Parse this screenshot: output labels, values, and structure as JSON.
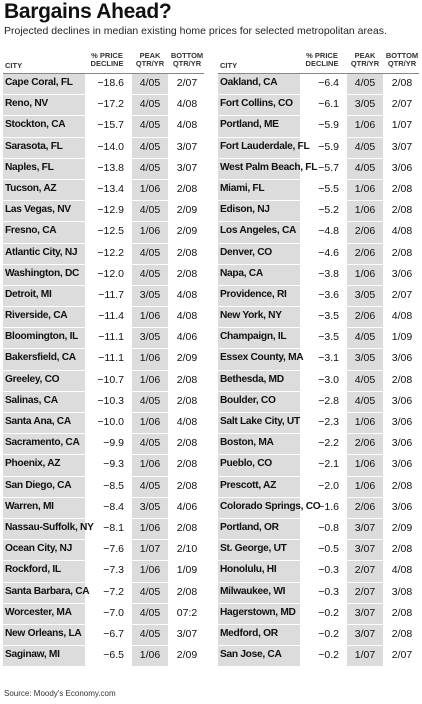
{
  "title": "Bargains Ahead?",
  "subtitle": "Projected declines in median existing home prices for selected metropolitan areas.",
  "headers": {
    "city": "CITY",
    "pct_l1": "% PRICE",
    "pct_l2": "DECLINE",
    "peak_l1": "PEAK",
    "peak_l2": "QTR/YR",
    "bottom_l1": "BOTTOM",
    "bottom_l2": "QTR/YR"
  },
  "left_rows": [
    {
      "city": "Cape Coral, FL",
      "decline": "−18.6",
      "peak": "4/05",
      "bottom": "2/07"
    },
    {
      "city": "Reno, NV",
      "decline": "−17.2",
      "peak": "4/05",
      "bottom": "4/08"
    },
    {
      "city": "Stockton, CA",
      "decline": "−15.7",
      "peak": "4/05",
      "bottom": "4/08"
    },
    {
      "city": "Sarasota, FL",
      "decline": "−14.0",
      "peak": "4/05",
      "bottom": "3/07"
    },
    {
      "city": "Naples, FL",
      "decline": "−13.8",
      "peak": "4/05",
      "bottom": "3/07"
    },
    {
      "city": "Tucson, AZ",
      "decline": "−13.4",
      "peak": "1/06",
      "bottom": "2/08"
    },
    {
      "city": "Las Vegas, NV",
      "decline": "−12.9",
      "peak": "4/05",
      "bottom": "2/09"
    },
    {
      "city": "Fresno, CA",
      "decline": "−12.5",
      "peak": "1/06",
      "bottom": "2/09"
    },
    {
      "city": "Atlantic City, NJ",
      "decline": "−12.2",
      "peak": "4/05",
      "bottom": "2/08"
    },
    {
      "city": "Washington, DC",
      "decline": "−12.0",
      "peak": "4/05",
      "bottom": "2/08"
    },
    {
      "city": "Detroit, MI",
      "decline": "−11.7",
      "peak": "3/05",
      "bottom": "4/08"
    },
    {
      "city": "Riverside, CA",
      "decline": "−11.4",
      "peak": "1/06",
      "bottom": "4/08"
    },
    {
      "city": "Bloomington, IL",
      "decline": "−11.1",
      "peak": "3/05",
      "bottom": "4/06"
    },
    {
      "city": "Bakersfield, CA",
      "decline": "−11.1",
      "peak": "1/06",
      "bottom": "2/09"
    },
    {
      "city": "Greeley, CO",
      "decline": "−10.7",
      "peak": "1/06",
      "bottom": "2/08"
    },
    {
      "city": "Salinas, CA",
      "decline": "−10.3",
      "peak": "4/05",
      "bottom": "2/08"
    },
    {
      "city": "Santa Ana, CA",
      "decline": "−10.0",
      "peak": "1/06",
      "bottom": "4/08"
    },
    {
      "city": "Sacramento, CA",
      "decline": "−9.9",
      "peak": "4/05",
      "bottom": "2/08"
    },
    {
      "city": "Phoenix, AZ",
      "decline": "−9.3",
      "peak": "1/06",
      "bottom": "2/08"
    },
    {
      "city": "San Diego, CA",
      "decline": "−8.5",
      "peak": "4/05",
      "bottom": "2/08"
    },
    {
      "city": "Warren, MI",
      "decline": "−8.4",
      "peak": "3/05",
      "bottom": "4/06"
    },
    {
      "city": "Nassau-Suffolk, NY",
      "decline": "−8.1",
      "peak": "1/06",
      "bottom": "2/08"
    },
    {
      "city": "Ocean City, NJ",
      "decline": "−7.6",
      "peak": "1/07",
      "bottom": "2/10"
    },
    {
      "city": "Rockford, IL",
      "decline": "−7.3",
      "peak": "1/06",
      "bottom": "1/09"
    },
    {
      "city": "Santa Barbara, CA",
      "decline": "−7.2",
      "peak": "4/05",
      "bottom": "2/08"
    },
    {
      "city": "Worcester, MA",
      "decline": "−7.0",
      "peak": "4/05",
      "bottom": "07:2"
    },
    {
      "city": "New Orleans, LA",
      "decline": "−6.7",
      "peak": "4/05",
      "bottom": "3/07"
    },
    {
      "city": "Saginaw, MI",
      "decline": "−6.5",
      "peak": "1/06",
      "bottom": "2/09"
    }
  ],
  "right_rows": [
    {
      "city": "Oakland, CA",
      "decline": "−6.4",
      "peak": "4/05",
      "bottom": "2/08"
    },
    {
      "city": "Fort Collins, CO",
      "decline": "−6.1",
      "peak": "3/05",
      "bottom": "2/07"
    },
    {
      "city": "Portland, ME",
      "decline": "−5.9",
      "peak": "1/06",
      "bottom": "1/07"
    },
    {
      "city": "Fort Lauderdale, FL",
      "decline": "−5.9",
      "peak": "4/05",
      "bottom": "3/07"
    },
    {
      "city": "West Palm Beach, FL",
      "decline": "−5.7",
      "peak": "4/05",
      "bottom": "3/06"
    },
    {
      "city": "Miami, FL",
      "decline": "−5.5",
      "peak": "1/06",
      "bottom": "2/08"
    },
    {
      "city": "Edison, NJ",
      "decline": "−5.2",
      "peak": "1/06",
      "bottom": "2/08"
    },
    {
      "city": "Los Angeles, CA",
      "decline": "−4.8",
      "peak": "2/06",
      "bottom": "4/08"
    },
    {
      "city": "Denver, CO",
      "decline": "−4.6",
      "peak": "2/06",
      "bottom": "2/08"
    },
    {
      "city": "Napa, CA",
      "decline": "−3.8",
      "peak": "1/06",
      "bottom": "3/06"
    },
    {
      "city": "Providence, RI",
      "decline": "−3.6",
      "peak": "3/05",
      "bottom": "2/07"
    },
    {
      "city": "New York, NY",
      "decline": "−3.5",
      "peak": "2/06",
      "bottom": "4/08"
    },
    {
      "city": "Champaign, IL",
      "decline": "−3.5",
      "peak": "4/05",
      "bottom": "1/09"
    },
    {
      "city": "Essex County, MA",
      "decline": "−3.1",
      "peak": "3/05",
      "bottom": "3/06"
    },
    {
      "city": "Bethesda, MD",
      "decline": "−3.0",
      "peak": "4/05",
      "bottom": "2/08"
    },
    {
      "city": "Boulder, CO",
      "decline": "−2.8",
      "peak": "4/05",
      "bottom": "3/06"
    },
    {
      "city": "Salt Lake City, UT",
      "decline": "−2.3",
      "peak": "1/06",
      "bottom": "3/06"
    },
    {
      "city": "Boston, MA",
      "decline": "−2.2",
      "peak": "2/06",
      "bottom": "3/06"
    },
    {
      "city": "Pueblo, CO",
      "decline": "−2.1",
      "peak": "1/06",
      "bottom": "3/06"
    },
    {
      "city": "Prescott, AZ",
      "decline": "−2.0",
      "peak": "1/06",
      "bottom": "2/08"
    },
    {
      "city": "Colorado Springs, CO",
      "decline": "−1.6",
      "peak": "2/06",
      "bottom": "3/06"
    },
    {
      "city": "Portland, OR",
      "decline": "−0.8",
      "peak": "3/07",
      "bottom": "2/09"
    },
    {
      "city": "St. George, UT",
      "decline": "−0.5",
      "peak": "3/07",
      "bottom": "2/08"
    },
    {
      "city": "Honolulu, HI",
      "decline": "−0.3",
      "peak": "2/07",
      "bottom": "4/08"
    },
    {
      "city": "Milwaukee, WI",
      "decline": "−0.3",
      "peak": "2/07",
      "bottom": "3/08"
    },
    {
      "city": "Hagerstown, MD",
      "decline": "−0.2",
      "peak": "3/07",
      "bottom": "2/08"
    },
    {
      "city": "Medford, OR",
      "decline": "−0.2",
      "peak": "3/07",
      "bottom": "2/08"
    },
    {
      "city": "San Jose, CA",
      "decline": "−0.2",
      "peak": "1/07",
      "bottom": "2/07"
    }
  ],
  "source": "Source: Moody's Economy.com"
}
